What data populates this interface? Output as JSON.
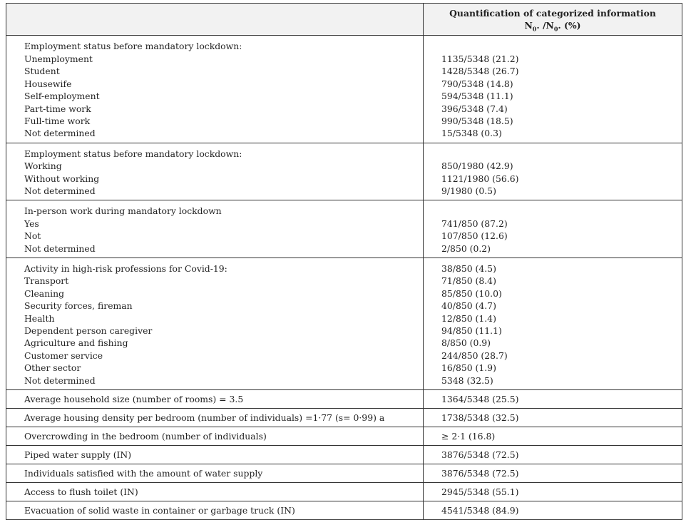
{
  "header": {
    "col1": "",
    "col2_line1": "Quantification of categorized information",
    "col2_line2": "N0. /N0. (%)"
  },
  "groups": [
    {
      "title": "Employment status before mandatory lockdown:",
      "title_value": "",
      "items": [
        {
          "label": "Unemployment",
          "value": "1135/5348 (21.2)"
        },
        {
          "label": "Student",
          "value": "1428/5348 (26.7)"
        },
        {
          "label": "Housewife",
          "value": "790/5348 (14.8)"
        },
        {
          "label": "Self-employment",
          "value": "594/5348 (11.1)"
        },
        {
          "label": "Part-time work",
          "value": "396/5348 (7.4)"
        },
        {
          "label": "Full-time work",
          "value": "990/5348 (18.5)"
        },
        {
          "label": "Not determined",
          "value": "15/5348 (0.3)"
        }
      ]
    },
    {
      "title": "Employment status before mandatory lockdown:",
      "title_value": "",
      "items": [
        {
          "label": "Working",
          "value": "850/1980 (42.9)"
        },
        {
          "label": "Without working",
          "value": "1121/1980 (56.6)"
        },
        {
          "label": "Not determined",
          "value": "9/1980 (0.5)"
        }
      ]
    },
    {
      "title": "In-person work during mandatory lockdown",
      "title_value": "",
      "items": [
        {
          "label": "Yes",
          "value": "741/850 (87.2)"
        },
        {
          "label": "Not",
          "value": "107/850 (12.6)"
        },
        {
          "label": "Not determined",
          "value": "2/850 (0.2)"
        }
      ]
    },
    {
      "title": "Activity in high-risk professions for Covid-19:",
      "title_value": "38/850 (4.5)",
      "items": [
        {
          "label": "Transport",
          "value": "71/850 (8.4)"
        },
        {
          "label": "Cleaning",
          "value": "85/850 (10.0)"
        },
        {
          "label": "Security forces, fireman",
          "value": "40/850 (4.7)"
        },
        {
          "label": "Health",
          "value": "12/850 (1.4)"
        },
        {
          "label": "Dependent person caregiver",
          "value": "94/850 (11.1)"
        },
        {
          "label": "Agriculture and fishing",
          "value": "8/850 (0.9)"
        },
        {
          "label": "Customer service",
          "value": "244/850 (28.7)"
        },
        {
          "label": "Other sector",
          "value": "16/850 (1.9)"
        },
        {
          "label": "Not determined",
          "value": "5348 (32.5)"
        }
      ]
    }
  ],
  "rows": [
    {
      "label": "Average household size (number of rooms) = 3.5",
      "value": "1364/5348 (25.5)"
    },
    {
      "label": "Average housing density per bedroom (number of individuals) =1·77 (s= 0·99) a",
      "value": "1738/5348 (32.5)"
    },
    {
      "label": "Overcrowding in the bedroom (number of individuals)",
      "value": "≥ 2·1 (16.8)"
    },
    {
      "label": "Piped water supply (IN)",
      "value": "3876/5348 (72.5)"
    },
    {
      "label": "Individuals satisfied with the amount of water supply",
      "value": "3876/5348 (72.5)"
    },
    {
      "label": "Access to flush toilet (IN)",
      "value": "2945/5348 (55.1)"
    },
    {
      "label": "Evacuation of solid waste in container or garbage truck (IN)",
      "value": "4541/5348 (84.9)"
    }
  ]
}
